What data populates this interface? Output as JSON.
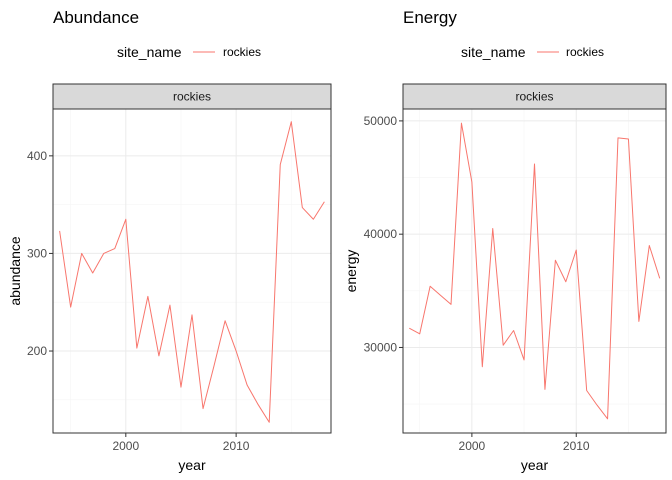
{
  "chart_data": [
    {
      "type": "line",
      "title": "Abundance",
      "facet_label": "rockies",
      "xlabel": "year",
      "ylabel": "abundance",
      "legend": {
        "title": "site_name",
        "placement": "top",
        "entries": [
          "rockies"
        ]
      },
      "xlim": [
        1993.4,
        2018.6
      ],
      "ylim": [
        116,
        448
      ],
      "x_ticks": [
        2000,
        2010
      ],
      "y_ticks": [
        200,
        300,
        400
      ],
      "grid": true,
      "series": [
        {
          "name": "rockies",
          "color": "#F8766D",
          "x": [
            1994,
            1995,
            1996,
            1997,
            1998,
            1999,
            2000,
            2001,
            2002,
            2003,
            2004,
            2005,
            2006,
            2007,
            2008,
            2009,
            2010,
            2011,
            2012,
            2013,
            2014,
            2015,
            2016,
            2017,
            2018
          ],
          "y": [
            323,
            245,
            300,
            280,
            300,
            305,
            335,
            203,
            256,
            195,
            247,
            163,
            237,
            141,
            185,
            231,
            200,
            165,
            145,
            127,
            391,
            435,
            347,
            335,
            353
          ]
        }
      ]
    },
    {
      "type": "line",
      "title": "Energy",
      "facet_label": "rockies",
      "xlabel": "year",
      "ylabel": "energy",
      "legend": {
        "title": "site_name",
        "placement": "top",
        "entries": [
          "rockies"
        ]
      },
      "xlim": [
        1993.4,
        2018.6
      ],
      "ylim": [
        22450,
        51050
      ],
      "x_ticks": [
        2000,
        2010
      ],
      "y_ticks": [
        30000,
        40000,
        50000
      ],
      "grid": true,
      "series": [
        {
          "name": "rockies",
          "color": "#F8766D",
          "x": [
            1994,
            1995,
            1996,
            1997,
            1998,
            1999,
            2000,
            2001,
            2002,
            2003,
            2004,
            2005,
            2006,
            2007,
            2008,
            2009,
            2010,
            2011,
            2012,
            2013,
            2014,
            2015,
            2016,
            2017,
            2018
          ],
          "y": [
            31700,
            31200,
            35400,
            34600,
            33800,
            49800,
            44600,
            28300,
            40500,
            30200,
            31500,
            28900,
            46200,
            26300,
            37700,
            35800,
            38600,
            26200,
            24900,
            23700,
            48500,
            48400,
            32300,
            39000,
            36100
          ]
        }
      ]
    }
  ]
}
